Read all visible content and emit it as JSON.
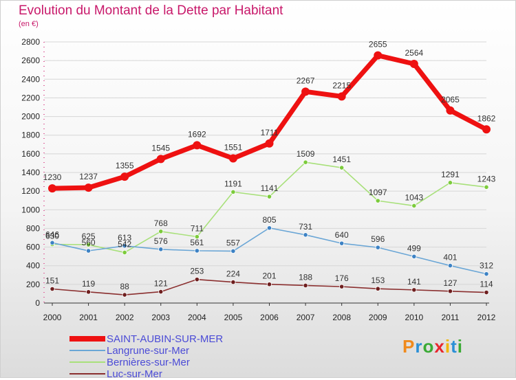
{
  "header": {
    "title": "Evolution du Montant de la Dette par Habitant",
    "unit": "(en €)"
  },
  "logo": {
    "text": "Proxiti"
  },
  "chart_data": {
    "type": "line",
    "title": "Evolution du Montant de la Dette par Habitant",
    "subtitle": "(en €)",
    "xlabel": "",
    "ylabel": "",
    "x": [
      "2000",
      "2001",
      "2002",
      "2003",
      "2004",
      "2005",
      "2006",
      "2007",
      "2008",
      "2009",
      "2010",
      "2011",
      "2012"
    ],
    "ylim": [
      0,
      2800
    ],
    "yticks": [
      0,
      200,
      400,
      600,
      800,
      1000,
      1200,
      1400,
      1600,
      1800,
      2000,
      2200,
      2400,
      2600,
      2800
    ],
    "grid": "horizontal",
    "legend_position": "bottom-left",
    "series": [
      {
        "name": "SAINT-AUBIN-SUR-MER",
        "color": "#ee1111",
        "marker": "#ee1111",
        "values": [
          1230,
          1237,
          1355,
          1545,
          1692,
          1551,
          1711,
          2267,
          2215,
          2655,
          2564,
          2065,
          1862
        ]
      },
      {
        "name": "Langrune-sur-Mer",
        "color": "#6aa6d6",
        "marker": "#3d82c4",
        "values": [
          646,
          560,
          613,
          576,
          561,
          557,
          805,
          731,
          640,
          596,
          499,
          401,
          312
        ]
      },
      {
        "name": "Bernières-sur-Mer",
        "color": "#a8e07a",
        "marker": "#7ccb3c",
        "values": [
          630,
          625,
          542,
          768,
          711,
          1191,
          1141,
          1509,
          1451,
          1097,
          1043,
          1291,
          1243
        ]
      },
      {
        "name": "Luc-sur-Mer",
        "color": "#8a2e2e",
        "marker": "#6e1f1f",
        "values": [
          151,
          119,
          88,
          121,
          253,
          224,
          201,
          188,
          176,
          153,
          141,
          127,
          114
        ]
      }
    ]
  }
}
